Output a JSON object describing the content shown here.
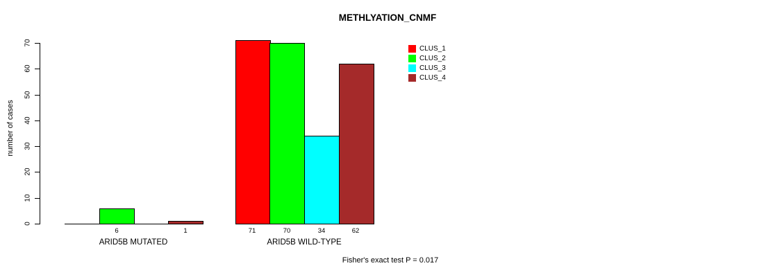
{
  "chart_data": {
    "type": "bar",
    "title": "METHLYATION_CNMF",
    "ylabel": "number of cases",
    "xlabel": "",
    "ylim": [
      0,
      70
    ],
    "yticks": [
      0,
      10,
      20,
      30,
      40,
      50,
      60,
      70
    ],
    "grid": false,
    "legend_position": "top-right",
    "categories": [
      "ARID5B MUTATED",
      "ARID5B WILD-TYPE"
    ],
    "series": [
      {
        "name": "CLUS_1",
        "color": "#ff0000",
        "values": [
          0,
          71
        ]
      },
      {
        "name": "CLUS_2",
        "color": "#00ff00",
        "values": [
          6,
          70
        ]
      },
      {
        "name": "CLUS_3",
        "color": "#00ffff",
        "values": [
          0,
          34
        ]
      },
      {
        "name": "CLUS_4",
        "color": "#a52a2a",
        "values": [
          1,
          62
        ]
      }
    ],
    "bar_value_labels": [
      [
        "",
        "6",
        "",
        "1"
      ],
      [
        "71",
        "70",
        "34",
        "62"
      ]
    ],
    "annotation": "Fisher's exact test P = 0.017"
  }
}
